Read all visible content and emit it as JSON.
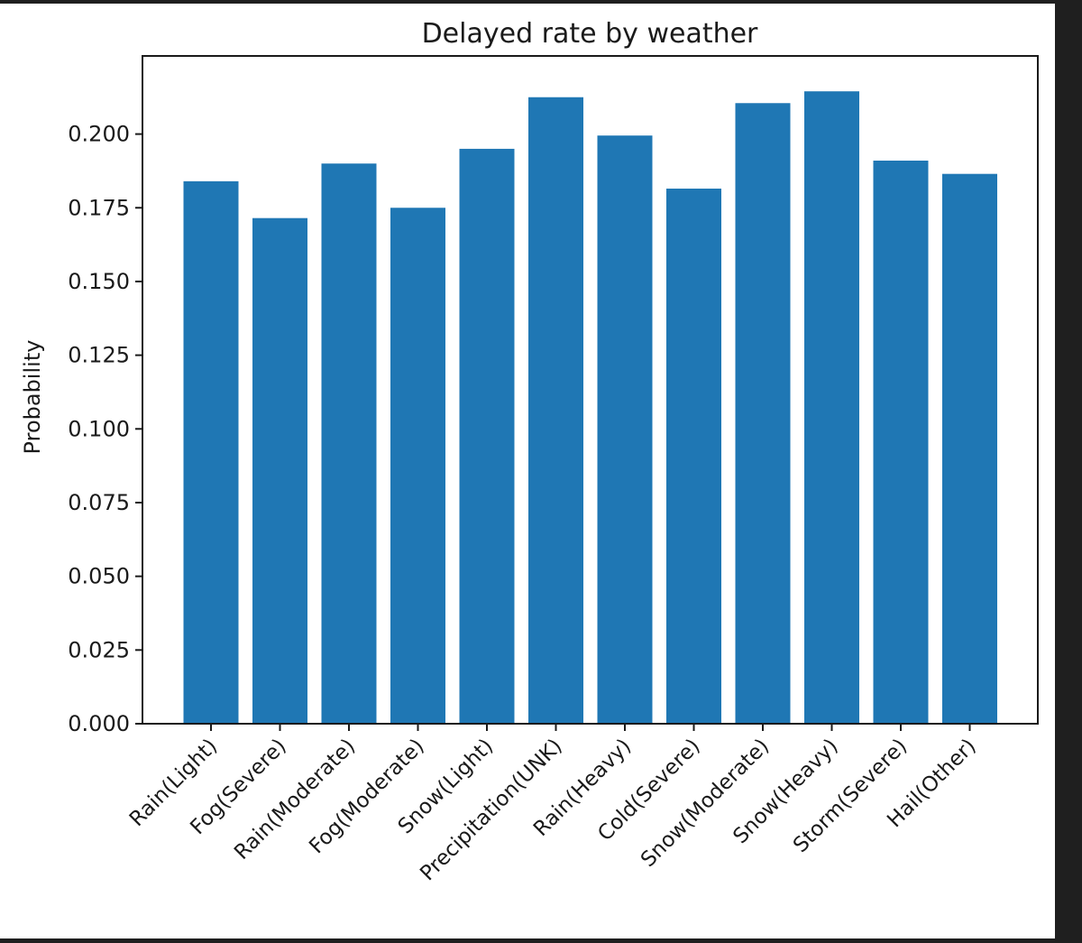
{
  "chart_data": {
    "type": "bar",
    "title": "Delayed rate by weather",
    "xlabel": "",
    "ylabel": "Probability",
    "categories": [
      "Rain(Light)",
      "Fog(Severe)",
      "Rain(Moderate)",
      "Fog(Moderate)",
      "Snow(Light)",
      "Precipitation(UNK)",
      "Rain(Heavy)",
      "Cold(Severe)",
      "Snow(Moderate)",
      "Snow(Heavy)",
      "Storm(Severe)",
      "Hail(Other)"
    ],
    "values": [
      0.184,
      0.1715,
      0.19,
      0.175,
      0.195,
      0.2125,
      0.1995,
      0.1815,
      0.2105,
      0.2145,
      0.191,
      0.1865
    ],
    "yticks": [
      "0.000",
      "0.025",
      "0.050",
      "0.075",
      "0.100",
      "0.125",
      "0.150",
      "0.175",
      "0.200"
    ],
    "ylim": [
      0,
      0.2265
    ],
    "grid": false,
    "bar_color": "#1f77b4"
  }
}
